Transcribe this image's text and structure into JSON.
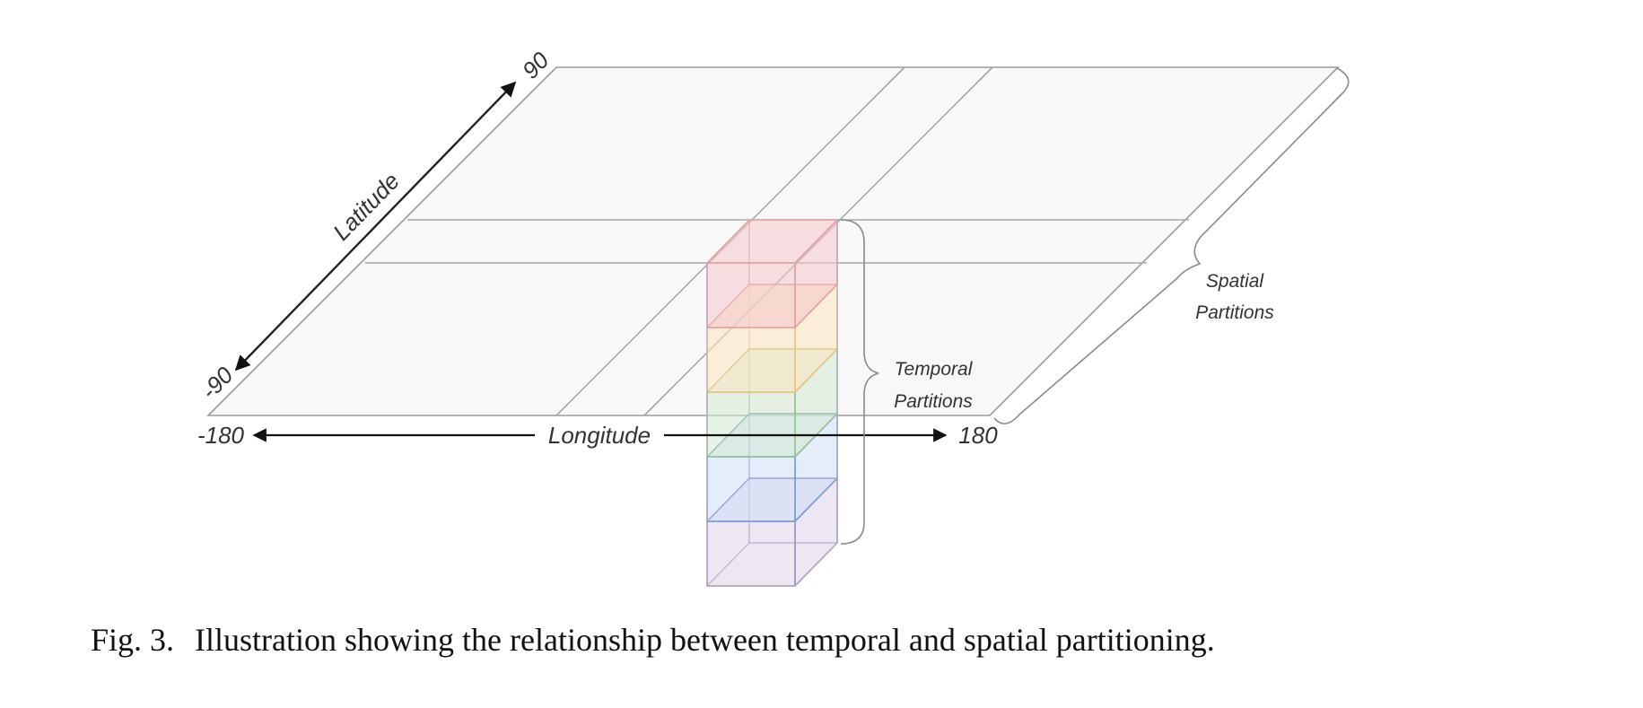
{
  "axes": {
    "latitude": {
      "label": "Latitude",
      "min": "-90",
      "max": "90"
    },
    "longitude": {
      "label": "Longitude",
      "min": "-180",
      "max": "180"
    }
  },
  "braces": {
    "temporal": [
      "Temporal",
      "Partitions"
    ],
    "spatial": [
      "Spatial",
      "Partitions"
    ]
  },
  "cubes": [
    {
      "name": "pink",
      "fill": "#f4c6cb",
      "stroke": "#e2a0a8"
    },
    {
      "name": "yellow",
      "fill": "#fbe6bf",
      "stroke": "#ebc683"
    },
    {
      "name": "green",
      "fill": "#d4e9d3",
      "stroke": "#93c392"
    },
    {
      "name": "blue",
      "fill": "#cfdcf6",
      "stroke": "#7b9dd6"
    },
    {
      "name": "purple",
      "fill": "#dfd4ea",
      "stroke": "#a793bd"
    }
  ],
  "caption": {
    "number": "Fig. 3.",
    "text": "Illustration showing the relationship between temporal and spatial partitioning."
  }
}
